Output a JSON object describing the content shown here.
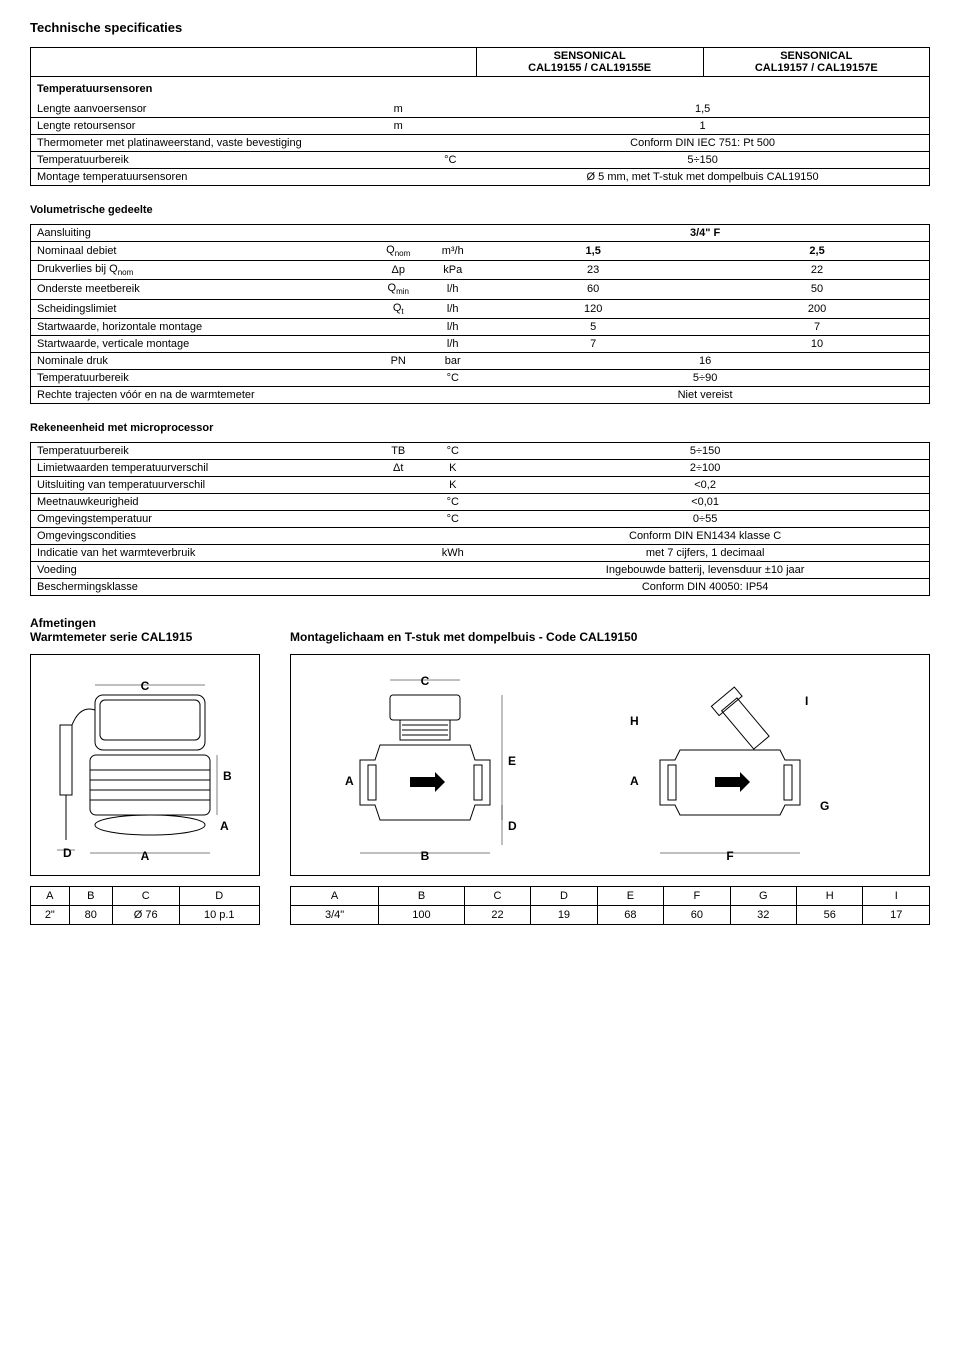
{
  "page_title": "Technische specificaties",
  "header_table": {
    "col1": "SENSONICAL\nCAL19155 / CAL19155E",
    "col2": "SENSONICAL\nCAL19157 / CAL19157E"
  },
  "temp_sensors": {
    "title": "Temperatuursensoren",
    "rows": [
      {
        "label": "Lengte aanvoersensor",
        "sym": "m",
        "unit": "",
        "val": "1,5"
      },
      {
        "label": "Lengte retoursensor",
        "sym": "m",
        "unit": "",
        "val": "1"
      },
      {
        "label": "Thermometer met platinaweerstand, vaste bevestiging",
        "sym": "",
        "unit": "",
        "val": "Conform DIN IEC 751: Pt 500"
      },
      {
        "label": "Temperatuurbereik",
        "sym": "",
        "unit": "°C",
        "val": "5÷150"
      },
      {
        "label": "Montage temperatuursensoren",
        "sym": "",
        "unit": "",
        "val": "Ø 5 mm, met T-stuk met dompelbuis CAL19150"
      }
    ]
  },
  "volumetric": {
    "title": "Volumetrische gedeelte",
    "rows": [
      {
        "label": "Aansluiting",
        "sym": "",
        "unit": "",
        "v1": "3/4\" F",
        "v2": "",
        "span": true
      },
      {
        "label": "Nominaal debiet",
        "sym": "Q",
        "sub": "nom",
        "unit": "m³/h",
        "v1": "1,5",
        "v2": "2,5"
      },
      {
        "label": "Drukverlies bij Q",
        "labelsub": "nom",
        "sym": "Δp",
        "unit": "kPa",
        "v1": "23",
        "v2": "22"
      },
      {
        "label": "Onderste meetbereik",
        "sym": "Q",
        "sub": "min",
        "unit": "l/h",
        "v1": "60",
        "v2": "50"
      },
      {
        "label": "Scheidingslimiet",
        "sym": "Q",
        "sub": "t",
        "unit": "l/h",
        "v1": "120",
        "v2": "200"
      },
      {
        "label": "Startwaarde, horizontale montage",
        "sym": "",
        "unit": "l/h",
        "v1": "5",
        "v2": "7"
      },
      {
        "label": "Startwaarde, verticale montage",
        "sym": "",
        "unit": "l/h",
        "v1": "7",
        "v2": "10"
      },
      {
        "label": "Nominale druk",
        "sym": "PN",
        "unit": "bar",
        "v1": "16",
        "v2": "",
        "span": true
      },
      {
        "label": "Temperatuurbereik",
        "sym": "",
        "unit": "°C",
        "v1": "5÷90",
        "v2": "",
        "span": true
      },
      {
        "label": "Rechte trajecten vóór en na de warmtemeter",
        "sym": "",
        "unit": "",
        "v1": "Niet vereist",
        "v2": "",
        "span": true
      }
    ]
  },
  "calc_unit": {
    "title": "Rekeneenheid met microprocessor",
    "rows": [
      {
        "label": "Temperatuurbereik",
        "sym": "TB",
        "unit": "°C",
        "val": "5÷150"
      },
      {
        "label": "Limietwaarden temperatuurverschil",
        "sym": "Δt",
        "unit": "K",
        "val": "2÷100"
      },
      {
        "label": "Uitsluiting van temperatuurverschil",
        "sym": "",
        "unit": "K",
        "val": "<0,2"
      },
      {
        "label": "Meetnauwkeurigheid",
        "sym": "",
        "unit": "°C",
        "val": "<0,01"
      },
      {
        "label": "Omgevingstemperatuur",
        "sym": "",
        "unit": "°C",
        "val": "0÷55"
      },
      {
        "label": "Omgevingscondities",
        "sym": "",
        "unit": "",
        "val": "Conform DIN EN1434 klasse C"
      },
      {
        "label": "Indicatie van het warmteverbruik",
        "sym": "",
        "unit": "kWh",
        "val": "met 7 cijfers, 1 decimaal"
      },
      {
        "label": "Voeding",
        "sym": "",
        "unit": "",
        "val": "Ingebouwde batterij, levensduur ±10 jaar"
      },
      {
        "label": "Beschermingsklasse",
        "sym": "",
        "unit": "",
        "val": "Conform DIN 40050: IP54"
      }
    ]
  },
  "dims": {
    "left_title1": "Afmetingen",
    "left_title2": "Warmtemeter serie CAL1915",
    "right_title": "Montagelichaam en T-stuk met dompelbuis - Code CAL19150",
    "left_cols": [
      "A",
      "B",
      "C",
      "D"
    ],
    "left_vals": [
      "2\"",
      "80",
      "Ø 76",
      "10 p.1"
    ],
    "right_cols": [
      "A",
      "B",
      "C",
      "D",
      "E",
      "F",
      "G",
      "H",
      "I"
    ],
    "right_vals": [
      "3/4\"",
      "100",
      "22",
      "19",
      "68",
      "60",
      "32",
      "56",
      "17"
    ]
  },
  "drawing_labels": {
    "left": [
      "A",
      "B",
      "C",
      "D"
    ],
    "right_front": [
      "A",
      "B",
      "C",
      "D",
      "E"
    ],
    "right_side": [
      "A",
      "F",
      "G",
      "H",
      "I"
    ]
  }
}
